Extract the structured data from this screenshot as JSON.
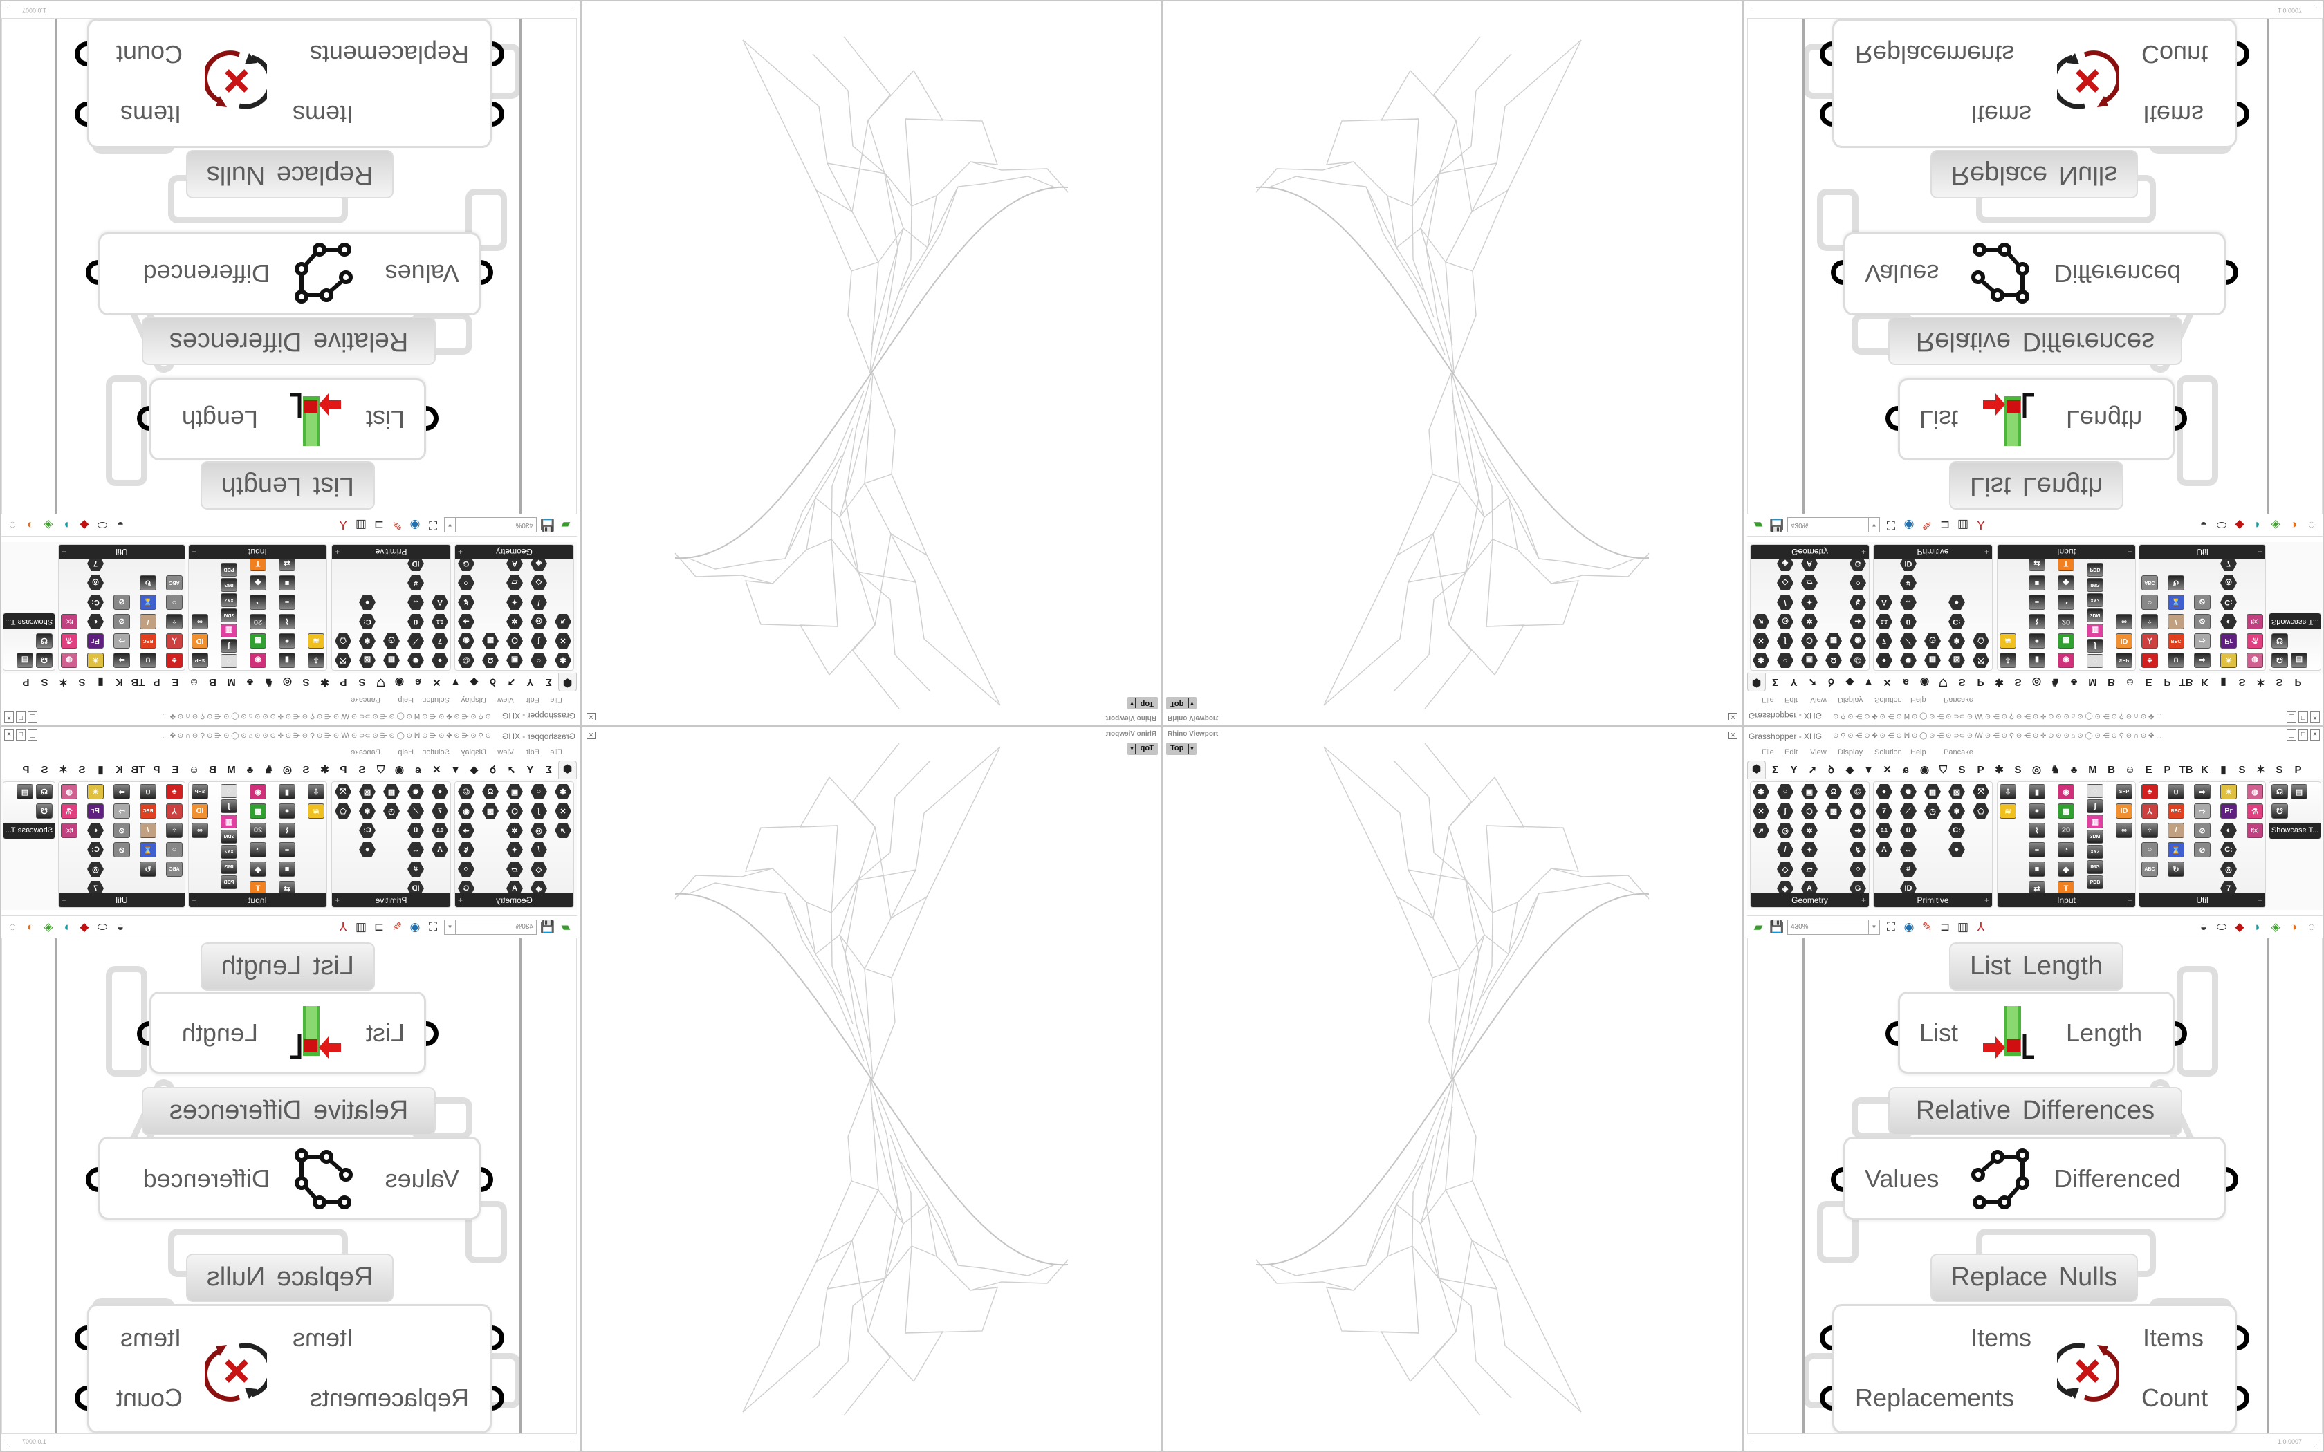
{
  "rhino_viewport": {
    "title": "Rhino Viewport",
    "view": "Top",
    "close_icon": "close-icon"
  },
  "grasshopper": {
    "title": "Grasshopper - XHG",
    "titlebar_glyphs": "⊙ ⚲ ⊙ ⋲ ⊙ ✥ ⊙ ⋲ ⊙ ꟽ ⊙ ◯ ⊙ ⋲ ⊙ ⊃⊂ ⊙ ꟿ ⊙ ⋲ ⊙ ⚲ ⊙ ⋲ ⊙ ✛ ⊙ ⊙ ⊙ ⌂ ⊙ ◯ ⊙ ⋲ ⊙ ⚲ ⊙ ∩ ⊙ ✥ ...",
    "window_buttons": [
      "_",
      "□",
      "X"
    ],
    "menu": [
      "File",
      "Edit",
      "View",
      "Display",
      "Solution",
      "Help",
      "Pancake"
    ],
    "tabs": [
      "⬢",
      "Σ",
      "Y",
      "➚",
      "ꝺ",
      "◆",
      "▼",
      "✕",
      "ɕ",
      "◉",
      "⛉",
      "S",
      "P",
      "✱",
      "S",
      "◎",
      "♞",
      "♣",
      "M",
      "B",
      "☺",
      "E",
      "P",
      "TB",
      "K",
      "▮",
      "S",
      "✶",
      "S",
      "P"
    ],
    "ribbon": {
      "panels": [
        {
          "label": "Geometry",
          "columns": [
            [
              {
                "n": "vector",
                "s": "hexagon",
                "g": "✱"
              },
              {
                "n": "circle-param",
                "s": "hexagon",
                "g": "✕"
              },
              {
                "n": "line-param",
                "s": "hexagon",
                "g": "➚"
              }
            ],
            [
              {
                "n": "circle",
                "s": "hexagon",
                "g": "○"
              },
              {
                "n": "arc",
                "s": "hexagon",
                "g": "∫"
              },
              {
                "n": "curve",
                "s": "hexagon",
                "g": "◎"
              },
              {
                "n": "line",
                "s": "hexagon",
                "g": "/"
              },
              {
                "n": "surface",
                "s": "hexagon",
                "g": "◇"
              },
              {
                "n": "plane",
                "s": "hexagon",
                "g": "◈"
              }
            ],
            [
              {
                "n": "box",
                "s": "hexagon",
                "g": "▣"
              },
              {
                "n": "brep",
                "s": "hexagon",
                "g": "⬡"
              },
              {
                "n": "mesh",
                "s": "hexagon",
                "g": "✲"
              },
              {
                "n": "twisted-box",
                "s": "hexagon",
                "g": "✦"
              },
              {
                "n": "field",
                "s": "hexagon",
                "g": "▱"
              },
              {
                "n": "geometry-pipeline",
                "s": "hexagon",
                "g": "A"
              }
            ],
            [
              {
                "n": "group",
                "s": "hexagon",
                "g": "Ω"
              },
              {
                "n": "mesh-face",
                "s": "hexagon",
                "g": "▩"
              }
            ],
            [
              {
                "n": "geometry-cache",
                "s": "hexagon",
                "g": "@"
              },
              {
                "n": "spiral",
                "s": "hexagon",
                "g": "◉"
              },
              {
                "n": "transform",
                "s": "hexagon",
                "g": "➜"
              },
              {
                "n": "flip",
                "s": "hexagon",
                "g": "↯"
              },
              {
                "n": "scatter",
                "s": "hexagon",
                "g": "⁘"
              },
              {
                "n": "geometry-load",
                "s": "hexagon",
                "g": "G"
              }
            ]
          ]
        },
        {
          "label": "Primitive",
          "columns": [
            [
              {
                "n": "boolean",
                "s": "hexagon",
                "g": "●"
              },
              {
                "n": "integer",
                "s": "hexagon",
                "g": "7"
              },
              {
                "n": "number",
                "s": "hexagon",
                "g": "0.1"
              },
              {
                "n": "text",
                "s": "hexagon",
                "g": "A"
              }
            ],
            [
              {
                "n": "colour",
                "s": "hexagon",
                "g": "✹"
              },
              {
                "n": "domain",
                "s": "hexagon",
                "g": "⟋"
              },
              {
                "n": "complex",
                "s": "hexagon",
                "g": "ü"
              },
              {
                "n": "interval",
                "s": "hexagon",
                "g": "↔"
              },
              {
                "n": "matrix",
                "s": "hexagon",
                "g": "#"
              },
              {
                "n": "guid",
                "s": "hexagon",
                "g": "ID"
              }
            ],
            [
              {
                "n": "data-path",
                "s": "hexagon",
                "g": "▦"
              },
              {
                "n": "time",
                "s": "hexagon",
                "g": "◷"
              }
            ],
            [
              {
                "n": "shader",
                "s": "hexagon",
                "g": "▧"
              },
              {
                "n": "culture",
                "s": "hexagon",
                "g": "✾"
              },
              {
                "n": "file-path",
                "s": "hexagon",
                "g": "C:"
              },
              {
                "n": "generic",
                "s": "hexagon",
                "g": "●"
              }
            ],
            [
              {
                "n": "transform-param",
                "s": "hexagon",
                "g": "⤧"
              },
              {
                "n": "field-param",
                "s": "hexagon",
                "g": "⬠"
              }
            ]
          ]
        },
        {
          "label": "Input",
          "columns": [
            [
              {
                "n": "import",
                "s": "tile",
                "g": "⇩"
              },
              {
                "n": "graph-mapper",
                "s": "tile",
                "g": "≋",
                "c": "#f0c020"
              }
            ],
            [
              {
                "n": "toggle",
                "s": "tile",
                "g": "▮"
              },
              {
                "n": "button",
                "s": "tile",
                "g": "●"
              },
              {
                "n": "gradient",
                "s": "tile",
                "g": "⌇"
              },
              {
                "n": "value-list",
                "s": "tile",
                "g": "≡"
              },
              {
                "n": "panel",
                "s": "tile",
                "g": "■"
              },
              {
                "n": "gumball",
                "s": "tile",
                "g": "⇄"
              }
            ],
            [
              {
                "n": "colour-swatch",
                "s": "tile",
                "g": "◉",
                "c": "#d0307a"
              },
              {
                "n": "colour-picker",
                "s": "tile",
                "g": "▩",
                "c": "#30a030"
              },
              {
                "n": "calendar",
                "s": "tile",
                "g": "20"
              },
              {
                "n": "clock",
                "s": "tile",
                "g": "◔"
              },
              {
                "n": "colour-wheel",
                "s": "tile",
                "g": "◆"
              },
              {
                "n": "paint",
                "s": "tile",
                "g": "T",
                "c": "#f08020"
              }
            ],
            [
              {
                "n": "wheel",
                "s": "tile",
                "g": "◌",
                "c": "#ddd"
              },
              {
                "n": "bezier",
                "s": "tile",
                "g": "∫"
              },
              {
                "n": "rainbow",
                "s": "tile",
                "g": "▥",
                "c": "#e040a0"
              },
              {
                "n": "3dm",
                "s": "tile",
                "g": "3DM"
              },
              {
                "n": "xyz",
                "s": "tile",
                "g": "XYZ"
              },
              {
                "n": "img",
                "s": "tile",
                "g": "IMG"
              },
              {
                "n": "pdb",
                "s": "tile",
                "g": "PDB"
              }
            ],
            [
              {
                "n": "shp",
                "s": "tile",
                "g": "SHP"
              },
              {
                "n": "id-tag",
                "s": "tile",
                "g": "ID",
                "c": "#f09030"
              },
              {
                "n": "object",
                "s": "tile",
                "g": "∞"
              }
            ]
          ]
        },
        {
          "label": "Util",
          "columns": [
            [
              {
                "n": "cherries",
                "s": "tile",
                "g": "♣",
                "c": "#d02020"
              },
              {
                "n": "kinematic",
                "s": "tile",
                "g": "⅄",
                "c": "#cc4040"
              },
              {
                "n": "tree",
                "s": "tile",
                "g": "♆"
              },
              {
                "n": "circle-util",
                "s": "tile",
                "g": "○",
                "c": "#888"
              },
              {
                "n": "abc",
                "s": "tile",
                "g": "ABC",
                "c": "#888"
              }
            ],
            [
              {
                "n": "magnet",
                "s": "tile",
                "g": "∪"
              },
              {
                "n": "record",
                "s": "tile",
                "g": "REC",
                "c": "#e04020"
              },
              {
                "n": "pencil",
                "s": "tile",
                "g": "/",
                "c": "#c0a080"
              },
              {
                "n": "timer",
                "s": "tile",
                "g": "⌛",
                "c": "#4060d0"
              },
              {
                "n": "reset",
                "s": "tile",
                "g": "↻"
              }
            ],
            [
              {
                "n": "forward",
                "s": "tile",
                "g": "➡"
              },
              {
                "n": "forward-outline",
                "s": "tile",
                "g": "⇨",
                "c": "#aaa"
              },
              {
                "n": "search",
                "s": "tile",
                "g": "⊘",
                "c": "#888"
              },
              {
                "n": "disable",
                "s": "tile",
                "g": "⊘",
                "c": "#888"
              }
            ],
            [
              {
                "n": "egg",
                "s": "tile",
                "g": "☀",
                "c": "#e0c040"
              },
              {
                "n": "premiere",
                "s": "tile",
                "g": "Pr",
                "c": "#602080"
              },
              {
                "n": "gauge",
                "s": "hexagon",
                "g": "◐"
              },
              {
                "n": "file-util",
                "s": "hexagon",
                "g": "C:"
              },
              {
                "n": "spiral-util",
                "s": "hexagon",
                "g": "◎"
              },
              {
                "n": "seven",
                "s": "hexagon",
                "g": "7"
              }
            ],
            [
              {
                "n": "disc",
                "s": "tile",
                "g": "◍",
                "c": "#d06090"
              },
              {
                "n": "flask",
                "s": "tile",
                "g": "⚗",
                "c": "#e04080"
              },
              {
                "n": "fx",
                "s": "tile",
                "g": "f(x)",
                "c": "#c04080"
              }
            ]
          ]
        },
        {
          "label": "Showcase T...",
          "columns": [
            [
              {
                "n": "showcase-a",
                "s": "tile",
                "g": "☊"
              },
              {
                "n": "showcase-b",
                "s": "tile",
                "g": "☋"
              }
            ],
            [
              {
                "n": "presentation",
                "s": "tile",
                "g": "▤"
              }
            ]
          ]
        }
      ]
    },
    "toolbar": {
      "zoom": "430%"
    },
    "canvas": {
      "list_length": {
        "label": "List Length",
        "input": "List",
        "output": "Length"
      },
      "relative_differences": {
        "label": "Relative Differences",
        "input": "Values",
        "output": "Differenced"
      },
      "replace_nulls": {
        "label": "Replace Nulls",
        "inputs": [
          "Items",
          "Replacements"
        ],
        "outputs": [
          "Items",
          "Count"
        ]
      }
    },
    "status": {
      "left": "--",
      "version": "1.0.0007"
    }
  },
  "colors": {
    "wire_gray": "#c8c8c8",
    "panel_dark": "#262626",
    "component_text": "#5c5c5c",
    "icon_red": "#cc1010",
    "icon_green": "#40b030"
  }
}
